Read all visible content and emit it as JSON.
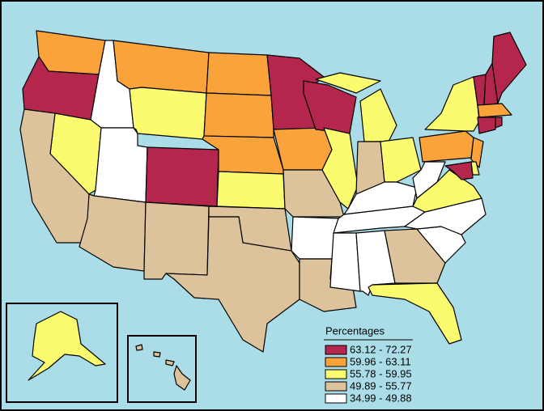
{
  "legend": {
    "title": "Percentages",
    "items": [
      {
        "label": "63.12 - 72.27",
        "color": "#b5264c"
      },
      {
        "label": "59.96 - 63.11",
        "color": "#f9a33a"
      },
      {
        "label": "55.78 - 59.95",
        "color": "#fbfb70"
      },
      {
        "label": "49.89 - 55.77",
        "color": "#dcc39b"
      },
      {
        "label": "34.99 - 49.88",
        "color": "#ffffff"
      }
    ]
  }
}
